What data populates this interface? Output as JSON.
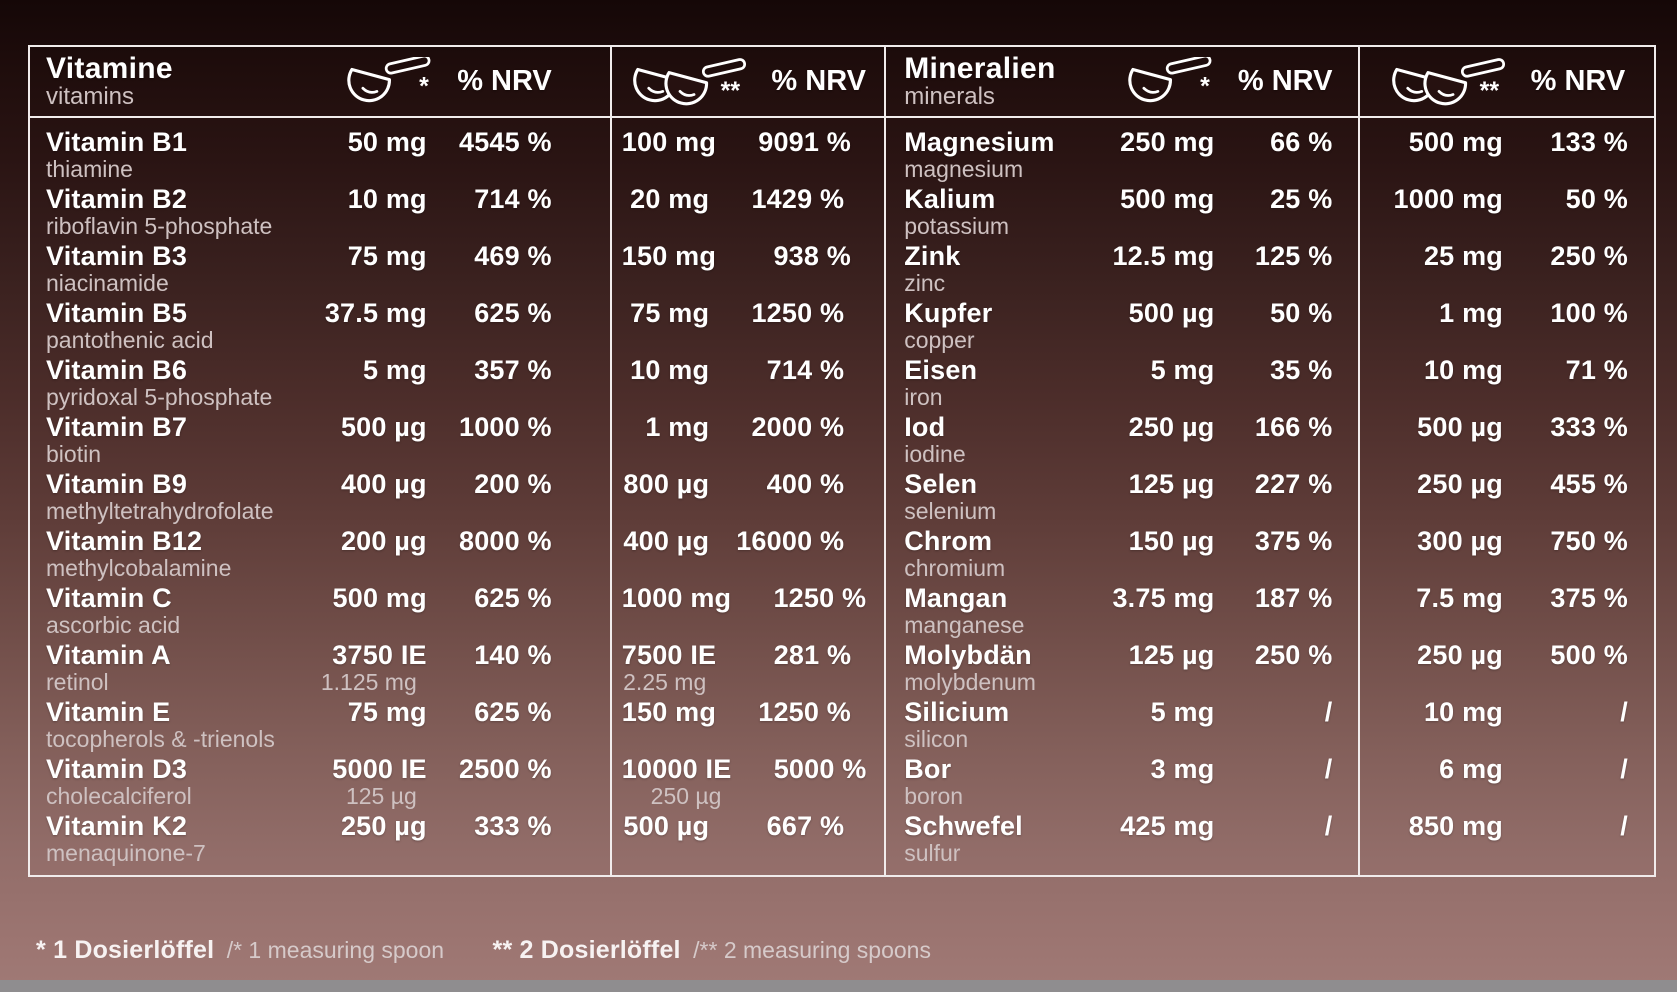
{
  "labels": {
    "nrv": "% NRV"
  },
  "colors": {
    "background_top": "#150707",
    "background_bottom": "#a07a76",
    "border": "#f1ecec",
    "text_primary": "#ffffff",
    "text_secondary": "#cec1c1",
    "footer_bar": "#8f8d8f"
  },
  "vitamins": {
    "title_de": "Vitamine",
    "title_en": "vitamins",
    "rows": [
      {
        "de": "Vitamin B1",
        "en": "thiamine",
        "one": {
          "amount": "50 mg",
          "nrv": "4545 %"
        },
        "two": {
          "amount": "100 mg",
          "nrv": "9091 %"
        }
      },
      {
        "de": "Vitamin B2",
        "en": "riboflavin 5-phosphate",
        "one": {
          "amount": "10 mg",
          "nrv": "714 %"
        },
        "two": {
          "amount": "20 mg",
          "nrv": "1429 %"
        }
      },
      {
        "de": "Vitamin B3",
        "en": "niacinamide",
        "one": {
          "amount": "75 mg",
          "nrv": "469 %"
        },
        "two": {
          "amount": "150 mg",
          "nrv": "938 %"
        }
      },
      {
        "de": "Vitamin B5",
        "en": "pantothenic acid",
        "one": {
          "amount": "37.5 mg",
          "nrv": "625 %"
        },
        "two": {
          "amount": "75 mg",
          "nrv": "1250 %"
        }
      },
      {
        "de": "Vitamin B6",
        "en": "pyridoxal 5-phosphate",
        "one": {
          "amount": "5 mg",
          "nrv": "357 %"
        },
        "two": {
          "amount": "10 mg",
          "nrv": "714 %"
        }
      },
      {
        "de": "Vitamin B7",
        "en": "biotin",
        "one": {
          "amount": "500 µg",
          "nrv": "1000 %"
        },
        "two": {
          "amount": "1 mg",
          "nrv": "2000 %"
        }
      },
      {
        "de": "Vitamin B9",
        "en": "methyltetrahydrofolate",
        "one": {
          "amount": "400 µg",
          "nrv": "200 %"
        },
        "two": {
          "amount": "800 µg",
          "nrv": "400 %"
        }
      },
      {
        "de": "Vitamin B12",
        "en": "methylcobalamine",
        "one": {
          "amount": "200 µg",
          "nrv": "8000 %"
        },
        "two": {
          "amount": "400 µg",
          "nrv": "16000 %"
        }
      },
      {
        "de": "Vitamin C",
        "en": "ascorbic acid",
        "one": {
          "amount": "500 mg",
          "nrv": "625 %"
        },
        "two": {
          "amount": "1000 mg",
          "nrv": "1250 %"
        }
      },
      {
        "de": "Vitamin A",
        "en": "retinol",
        "one": {
          "amount": "3750 IE",
          "sub": "1.125 mg",
          "nrv": "140 %"
        },
        "two": {
          "amount": "7500 IE",
          "sub": "2.25 mg",
          "nrv": "281 %"
        }
      },
      {
        "de": "Vitamin E",
        "en": "tocopherols & -trienols",
        "one": {
          "amount": "75 mg",
          "nrv": "625 %"
        },
        "two": {
          "amount": "150 mg",
          "nrv": "1250 %"
        }
      },
      {
        "de": "Vitamin D3",
        "en": "cholecalciferol",
        "one": {
          "amount": "5000 IE",
          "sub": "125 µg",
          "nrv": "2500 %"
        },
        "two": {
          "amount": "10000 IE",
          "sub": "250 µg",
          "nrv": "5000 %"
        }
      },
      {
        "de": "Vitamin K2",
        "en": "menaquinone-7",
        "one": {
          "amount": "250 µg",
          "nrv": "333 %"
        },
        "two": {
          "amount": "500 µg",
          "nrv": "667 %"
        }
      }
    ]
  },
  "minerals": {
    "title_de": "Mineralien",
    "title_en": "minerals",
    "rows": [
      {
        "de": "Magnesium",
        "en": "magnesium",
        "one": {
          "amount": "250 mg",
          "nrv": "66 %"
        },
        "two": {
          "amount": "500 mg",
          "nrv": "133 %"
        }
      },
      {
        "de": "Kalium",
        "en": "potassium",
        "one": {
          "amount": "500 mg",
          "nrv": "25 %"
        },
        "two": {
          "amount": "1000 mg",
          "nrv": "50 %"
        }
      },
      {
        "de": "Zink",
        "en": "zinc",
        "one": {
          "amount": "12.5 mg",
          "nrv": "125 %"
        },
        "two": {
          "amount": "25 mg",
          "nrv": "250 %"
        }
      },
      {
        "de": "Kupfer",
        "en": "copper",
        "one": {
          "amount": "500 µg",
          "nrv": "50 %"
        },
        "two": {
          "amount": "1 mg",
          "nrv": "100 %"
        }
      },
      {
        "de": "Eisen",
        "en": "iron",
        "one": {
          "amount": "5 mg",
          "nrv": "35 %"
        },
        "two": {
          "amount": "10 mg",
          "nrv": "71 %"
        }
      },
      {
        "de": "Iod",
        "en": "iodine",
        "one": {
          "amount": "250 µg",
          "nrv": "166 %"
        },
        "two": {
          "amount": "500 µg",
          "nrv": "333 %"
        }
      },
      {
        "de": "Selen",
        "en": "selenium",
        "one": {
          "amount": "125 µg",
          "nrv": "227 %"
        },
        "two": {
          "amount": "250 µg",
          "nrv": "455 %"
        }
      },
      {
        "de": "Chrom",
        "en": "chromium",
        "one": {
          "amount": "150 µg",
          "nrv": "375 %"
        },
        "two": {
          "amount": "300 µg",
          "nrv": "750 %"
        }
      },
      {
        "de": "Mangan",
        "en": "manganese",
        "one": {
          "amount": "3.75 mg",
          "nrv": "187 %"
        },
        "two": {
          "amount": "7.5 mg",
          "nrv": "375 %"
        }
      },
      {
        "de": "Molybdän",
        "en": "molybdenum",
        "one": {
          "amount": "125 µg",
          "nrv": "250 %"
        },
        "two": {
          "amount": "250 µg",
          "nrv": "500 %"
        }
      },
      {
        "de": "Silicium",
        "en": "silicon",
        "one": {
          "amount": "5 mg",
          "nrv": "/"
        },
        "two": {
          "amount": "10 mg",
          "nrv": "/"
        }
      },
      {
        "de": "Bor",
        "en": "boron",
        "one": {
          "amount": "3 mg",
          "nrv": "/"
        },
        "two": {
          "amount": "6 mg",
          "nrv": "/"
        }
      },
      {
        "de": "Schwefel",
        "en": "sulfur",
        "one": {
          "amount": "425 mg",
          "nrv": "/"
        },
        "two": {
          "amount": "850 mg",
          "nrv": "/"
        }
      }
    ]
  },
  "footnote": {
    "one_bold": "* 1 Dosierlöffel",
    "one_light": "/* 1 measuring spoon",
    "two_bold": "** 2 Dosierlöffel",
    "two_light": "/** 2 measuring spoons"
  }
}
